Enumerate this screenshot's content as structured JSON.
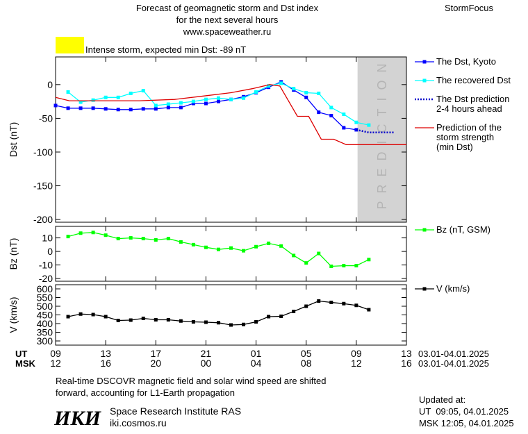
{
  "header": {
    "title": [
      "Forecast of geomagnetic storm and Dst index",
      "for the next several hours",
      "www.spaceweather.ru"
    ],
    "brand": "StormFocus",
    "alert": "Intense storm, expected min Dst: -89 nT",
    "alert_color": "#ffff00"
  },
  "chart_data": [
    {
      "type": "line",
      "ylabel": "Dst (nT)",
      "xlim": [
        0,
        28
      ],
      "xticks": [
        0,
        4,
        8,
        12,
        16,
        20,
        24,
        28
      ],
      "ylim": [
        -204,
        41
      ],
      "yticks": [
        -200,
        -150,
        -100,
        -50,
        0
      ],
      "prediction_zone": {
        "xlim": [
          24.1,
          28
        ],
        "label": "PREDICTION",
        "color": "#d3d3d3",
        "text_color": "#b4b4b4"
      },
      "series": [
        {
          "name": "The Dst, Kyoto",
          "color": "#0000ff",
          "line_style": "solid",
          "markers": true,
          "x": [
            0,
            1,
            2,
            3,
            4,
            5,
            6,
            7,
            8,
            9,
            10,
            11,
            12,
            13,
            14,
            15,
            16,
            17,
            18,
            19,
            20,
            21,
            22,
            23,
            24
          ],
          "values": [
            -31,
            -35,
            -35,
            -35,
            -36,
            -37,
            -37,
            -36,
            -36,
            -34,
            -34,
            -28,
            -28,
            -25,
            -22,
            -18,
            -12,
            -4,
            4,
            -8,
            -19,
            -41,
            -46,
            -64,
            -67
          ]
        },
        {
          "name": "The recovered Dst",
          "color": "#00ffff",
          "line_style": "solid",
          "markers": true,
          "x": [
            1,
            2,
            3,
            4,
            5,
            6,
            7,
            8,
            9,
            10,
            11,
            12,
            13,
            14,
            15,
            16,
            17,
            18,
            19,
            20,
            21,
            22,
            23,
            24,
            25
          ],
          "values": [
            -11,
            -26,
            -23,
            -19,
            -19,
            -13,
            -9,
            -31,
            -29,
            -27,
            -25,
            -22,
            -20,
            -22,
            -20,
            -11,
            -2,
            2,
            -6,
            -12,
            -13,
            -34,
            -44,
            -56,
            -60
          ]
        },
        {
          "name": "The Dst prediction\n2-4 hours ahead",
          "color": "#0000cc",
          "line_style": "dotted",
          "markers": false,
          "x": [
            24,
            25,
            26,
            27
          ],
          "values": [
            -67,
            -71,
            -71,
            -71
          ]
        },
        {
          "name": "Prediction of the\nstorm strength\n(min Dst)",
          "color": "#dd0000",
          "line_style": "solid",
          "markers": false,
          "x": [
            0,
            1.1,
            6.7,
            9.5,
            11.8,
            14,
            15.7,
            17.1,
            17.9,
            19.3,
            20.2,
            21.2,
            22.2,
            23.2,
            28
          ],
          "values": [
            -19,
            -24,
            -24,
            -22,
            -17,
            -12,
            -6,
            0,
            -2,
            -47,
            -47,
            -81,
            -81,
            -89,
            -89
          ]
        }
      ]
    },
    {
      "type": "line",
      "ylabel": "Bz (nT)",
      "xlim": [
        0,
        28
      ],
      "xticks": [
        0,
        4,
        8,
        12,
        16,
        20,
        24,
        28
      ],
      "ylim": [
        -22,
        18.5
      ],
      "yticks": [
        -20,
        -10,
        0,
        10
      ],
      "series": [
        {
          "name": "Bz (nT, GSM)",
          "color": "#00ff00",
          "line_style": "solid",
          "markers": true,
          "x": [
            1,
            2,
            3,
            4,
            5,
            6,
            7,
            8,
            9,
            10,
            11,
            12,
            13,
            14,
            15,
            16,
            17,
            18,
            19,
            20,
            21,
            22,
            23,
            24,
            25
          ],
          "values": [
            11,
            13.5,
            14,
            12,
            9.5,
            10,
            9.5,
            8.5,
            9.5,
            7,
            5,
            3,
            1.5,
            2.5,
            0.5,
            3.5,
            6,
            4,
            -3,
            -8.5,
            -1.5,
            -11,
            -10.5,
            -10.5,
            -6
          ]
        }
      ]
    },
    {
      "type": "line",
      "ylabel": "V (km/s)",
      "xlim": [
        0,
        28
      ],
      "xticks": [
        0,
        4,
        8,
        12,
        16,
        20,
        24,
        28
      ],
      "ylim": [
        276,
        624
      ],
      "yticks": [
        300,
        350,
        400,
        450,
        500,
        550,
        600
      ],
      "xtick_rows": [
        {
          "name": "UT",
          "labels": [
            "09",
            "13",
            "17",
            "21",
            "01",
            "05",
            "09",
            "13"
          ],
          "date_range": "03.01-04.01.2025"
        },
        {
          "name": "MSK",
          "labels": [
            "12",
            "16",
            "20",
            "00",
            "04",
            "08",
            "12",
            "16"
          ],
          "date_range": "03.01-04.01.2025"
        }
      ],
      "series": [
        {
          "name": "V (km/s)",
          "color": "#000000",
          "line_style": "solid",
          "markers": true,
          "x": [
            1,
            2,
            3,
            4,
            5,
            6,
            7,
            8,
            9,
            10,
            11,
            12,
            13,
            14,
            15,
            16,
            17,
            18,
            19,
            20,
            21,
            22,
            23,
            24,
            25
          ],
          "values": [
            440,
            455,
            452,
            440,
            418,
            420,
            430,
            422,
            422,
            415,
            410,
            408,
            405,
            392,
            395,
            410,
            440,
            442,
            470,
            500,
            530,
            522,
            515,
            505,
            480
          ]
        }
      ]
    }
  ],
  "footer": {
    "note": [
      "Real-time DSCOVR magnetic field and solar wind speed are shifted",
      "forward, accounting for L1-Earth propagation"
    ],
    "logo": "ИКИ",
    "institute": "Space Research Institute RAS",
    "site": "iki.cosmos.ru",
    "updated": [
      "Updated at:",
      "UT  09:05, 04.01.2025",
      "MSK 12:05, 04.01.2025"
    ]
  }
}
